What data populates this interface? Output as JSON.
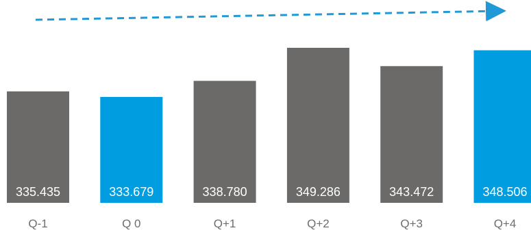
{
  "chart_data": {
    "type": "bar",
    "categories": [
      "Q-1",
      "Q 0",
      "Q+1",
      "Q+2",
      "Q+3",
      "Q+4"
    ],
    "values": [
      335.435,
      333.679,
      338.78,
      349.286,
      343.472,
      348.506
    ],
    "value_labels": [
      "335.435",
      "333.679",
      "338.780",
      "349.286",
      "343.472",
      "348.506"
    ],
    "highlighted": [
      false,
      true,
      false,
      false,
      false,
      true
    ],
    "title": "",
    "xlabel": "",
    "ylabel": "",
    "trend_arrow": "rising",
    "colors": {
      "bar": "#6b6a69",
      "highlight": "#009ee0",
      "label_text": "#ffffff",
      "category_text": "#6d6d6d",
      "arrow": "#1f9ad6"
    }
  }
}
